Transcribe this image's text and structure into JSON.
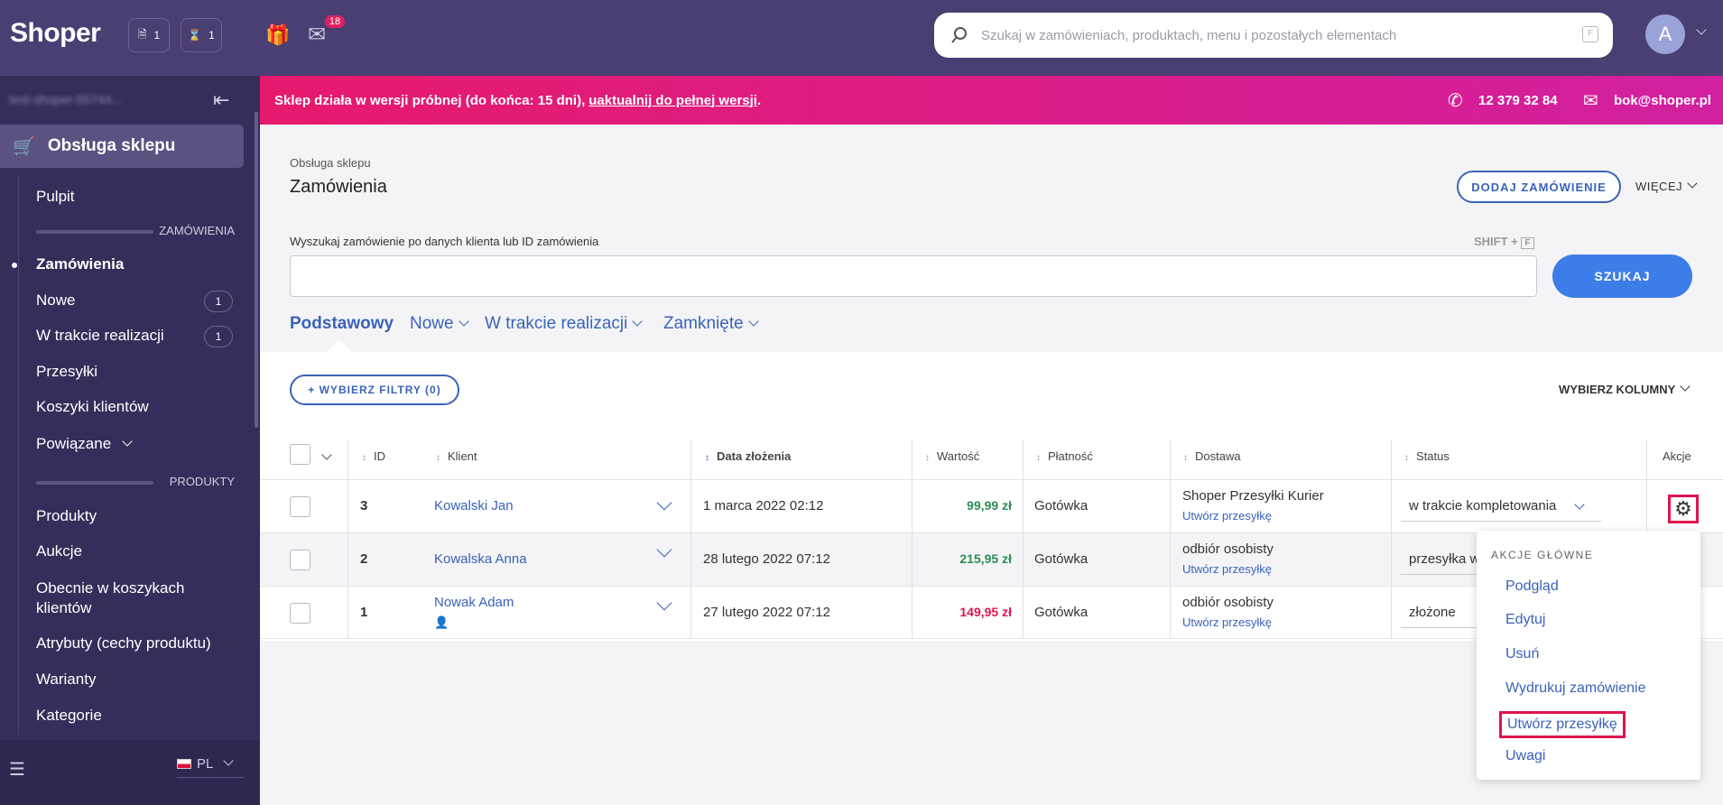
{
  "topbar": {
    "logo": "Shoper",
    "badge1": "1",
    "badge2": "1",
    "mail_count": "18",
    "search_placeholder": "Szukaj w zamówieniach, produktach, menu i pozostałych elementach",
    "search_key": "F",
    "avatar": "A"
  },
  "sidebar": {
    "store_name": "test-shoper-55744...",
    "section_title": "Obsługa sklepu",
    "pulpit": "Pulpit",
    "sec_orders": "ZAMÓWIENIA",
    "orders": "Zamówienia",
    "nowe": "Nowe",
    "nowe_count": "1",
    "w_trakcie": "W trakcie realizacji",
    "w_trakcie_count": "1",
    "przesylki": "Przesyłki",
    "koszyki": "Koszyki klientów",
    "powiazane": "Powiązane",
    "sec_products": "PRODUKTY",
    "produkty": "Produkty",
    "aukcje": "Aukcje",
    "obecnie_1": "Obecnie w koszykach",
    "obecnie_2": "klientów",
    "atrybuty": "Atrybuty (cechy produktu)",
    "warianty": "Warianty",
    "kategorie": "Kategorie",
    "lang": "PL"
  },
  "banner": {
    "text": "Sklep działa w wersji próbnej (do końca: 15 dni), ",
    "link": "uaktualnij do pełnej wersji",
    "end": ".",
    "phone": "12 379 32 84",
    "email": "bok@shoper.pl"
  },
  "page": {
    "breadcrumb": "Obsługa sklepu",
    "title": "Zamówienia",
    "add_order": "DODAJ ZAMÓWIENIE",
    "more": "WIĘCEJ",
    "search_label": "Wyszukaj zamówienie po danych klienta lub ID zamówienia",
    "shortcut": "SHIFT +",
    "shortcut_key": "F",
    "search_btn": "SZUKAJ",
    "tabs": [
      "Podstawowy",
      "Nowe",
      "W trakcie realizacji",
      "Zamknięte"
    ],
    "filters_btn": "+ WYBIERZ FILTRY (0)",
    "columns_btn": "WYBIERZ KOLUMNY"
  },
  "table": {
    "headers": {
      "id": "ID",
      "client": "Klient",
      "date": "Data złożenia",
      "value": "Wartość",
      "payment": "Płatność",
      "delivery": "Dostawa",
      "status": "Status",
      "actions": "Akcje"
    },
    "rows": [
      {
        "id": "3",
        "client": "Kowalski Jan",
        "date": "1 marca 2022 02:12",
        "value": "99,99 zł",
        "payment": "Gotówka",
        "delivery": "Shoper Przesyłki Kurier",
        "delivery_link": "Utwórz przesyłkę",
        "status": "w trakcie kompletowania"
      },
      {
        "id": "2",
        "client": "Kowalska Anna",
        "date": "28 lutego 2022 07:12",
        "value": "215,95 zł",
        "payment": "Gotówka",
        "delivery": "odbiór osobisty",
        "delivery_link": "Utwórz przesyłkę",
        "status": "przesyłka w"
      },
      {
        "id": "1",
        "client": "Nowak Adam",
        "date": "27 lutego 2022 07:12",
        "value": "149,95 zł",
        "payment": "Gotówka",
        "delivery": "odbiór osobisty",
        "delivery_link": "Utwórz przesyłkę",
        "status": "złożone"
      }
    ]
  },
  "menu": {
    "header": "AKCJE GŁÓWNE",
    "items": [
      "Podgląd",
      "Edytuj",
      "Usuń",
      "Wydrukuj zamówienie",
      "Utwórz przesyłkę",
      "Uwagi"
    ]
  },
  "colors": {
    "topbar": "#493f72",
    "sidebar": "#362e5a",
    "accent": "#3a63b8",
    "banner": "#e61a6d",
    "value_green": "#2e8b57",
    "value_red": "#e0154f"
  }
}
